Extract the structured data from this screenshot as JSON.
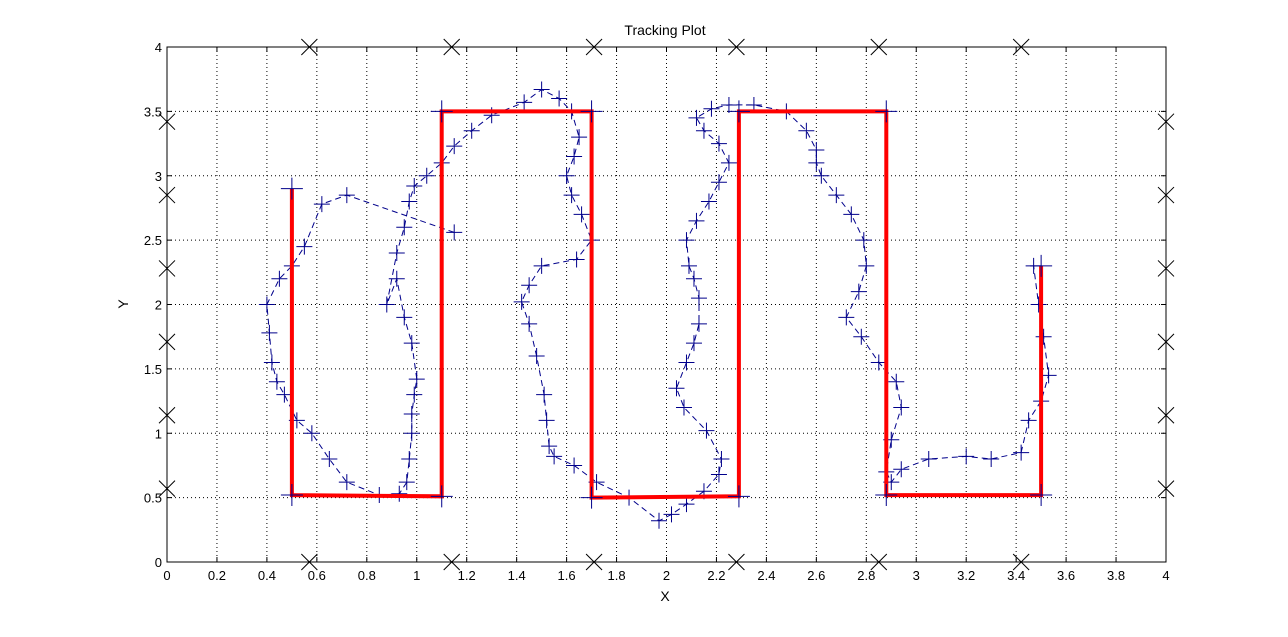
{
  "chart_data": {
    "type": "scatter",
    "title": "Tracking Plot",
    "xlabel": "X",
    "ylabel": "Y",
    "xlim": [
      0,
      4
    ],
    "ylim": [
      0,
      4
    ],
    "grid": true,
    "x_ticks": [
      0,
      0.2,
      0.4,
      0.6,
      0.8,
      1,
      1.2,
      1.4,
      1.6,
      1.8,
      2,
      2.2,
      2.4,
      2.6,
      2.8,
      3,
      3.2,
      3.4,
      3.6,
      3.8,
      4
    ],
    "x_tick_labels": [
      "0",
      "0.2",
      "0.4",
      "0.6",
      "0.8",
      "1",
      "1.2",
      "1.4",
      "1.6",
      "1.8",
      "2",
      "2.2",
      "2.4",
      "2.6",
      "2.8",
      "3",
      "3.2",
      "3.4",
      "3.6",
      "3.8",
      "4"
    ],
    "y_ticks": [
      0,
      0.5,
      1,
      1.5,
      2,
      2.5,
      3,
      3.5,
      4
    ],
    "y_tick_labels": [
      "0",
      "0.5",
      "1",
      "1.5",
      "2",
      "2.5",
      "3",
      "3.5",
      "4"
    ],
    "colors": {
      "reference": "#ff0000",
      "track": "#00008b",
      "anchors": "#000000",
      "grid": "#000000"
    },
    "series": [
      {
        "style": "solid-red-line-with-plus-markers",
        "x": [
          0.5,
          0.5,
          1.1,
          1.1,
          1.7,
          1.7,
          2.29,
          2.29,
          2.88,
          2.88,
          3.5,
          3.5
        ],
        "y": [
          2.9,
          0.52,
          0.51,
          3.5,
          3.5,
          0.5,
          0.51,
          3.5,
          3.5,
          0.52,
          0.52,
          2.3
        ]
      },
      {
        "style": "dashed-blue-line-with-plus-markers",
        "x": [
          1.15,
          0.72,
          0.62,
          0.55,
          0.5,
          0.45,
          0.4,
          0.41,
          0.42,
          0.44,
          0.47,
          0.52,
          0.58,
          0.65,
          0.72,
          0.85,
          0.93,
          0.96,
          0.97,
          0.98,
          0.98,
          0.99,
          1.0,
          0.98,
          0.95,
          0.92,
          0.88,
          0.92,
          0.95,
          0.97,
          0.99,
          1.04,
          1.1,
          1.15,
          1.22,
          1.3,
          1.43,
          1.5,
          1.57,
          1.62,
          1.65,
          1.63,
          1.6,
          1.62,
          1.66,
          1.7,
          1.64,
          1.5,
          1.45,
          1.42,
          1.45,
          1.48,
          1.51,
          1.52,
          1.53,
          1.55,
          1.63,
          1.72,
          1.85,
          1.97,
          2.02,
          2.08,
          2.15,
          2.21,
          2.22,
          2.16,
          2.07,
          2.04,
          2.08,
          2.11,
          2.13,
          2.13,
          2.11,
          2.09,
          2.08,
          2.12,
          2.17,
          2.21,
          2.25,
          2.21,
          2.15,
          2.12,
          2.18,
          2.25,
          2.35,
          2.48,
          2.56,
          2.6,
          2.6,
          2.62,
          2.68,
          2.74,
          2.79,
          2.8,
          2.77,
          2.72,
          2.78,
          2.85,
          2.92,
          2.94,
          2.9,
          2.88,
          2.9,
          2.94,
          3.05,
          3.2,
          3.3,
          3.42,
          3.45,
          3.5,
          3.53,
          3.51,
          3.49,
          3.47
        ],
        "y": [
          2.56,
          2.85,
          2.78,
          2.45,
          2.3,
          2.2,
          2.0,
          1.78,
          1.55,
          1.4,
          1.3,
          1.1,
          1.0,
          0.8,
          0.62,
          0.52,
          0.53,
          0.62,
          0.8,
          1.0,
          1.15,
          1.3,
          1.42,
          1.7,
          1.9,
          2.2,
          2.0,
          2.4,
          2.6,
          2.8,
          2.92,
          3.0,
          3.1,
          3.23,
          3.35,
          3.47,
          3.57,
          3.67,
          3.6,
          3.5,
          3.3,
          3.15,
          3.0,
          2.85,
          2.7,
          2.5,
          2.35,
          2.3,
          2.15,
          2.02,
          1.85,
          1.6,
          1.3,
          1.1,
          0.9,
          0.82,
          0.75,
          0.62,
          0.5,
          0.32,
          0.37,
          0.45,
          0.55,
          0.68,
          0.8,
          1.02,
          1.2,
          1.35,
          1.55,
          1.7,
          1.85,
          2.05,
          2.2,
          2.3,
          2.5,
          2.65,
          2.8,
          2.95,
          3.1,
          3.25,
          3.35,
          3.45,
          3.52,
          3.55,
          3.55,
          3.5,
          3.35,
          3.2,
          3.1,
          3.0,
          2.85,
          2.7,
          2.5,
          2.3,
          2.1,
          1.9,
          1.75,
          1.55,
          1.4,
          1.2,
          0.95,
          0.7,
          0.62,
          0.72,
          0.8,
          0.82,
          0.8,
          0.85,
          1.1,
          1.25,
          1.45,
          1.75,
          2.0,
          2.3
        ]
      },
      {
        "style": "black-x-markers",
        "x": [
          0.57,
          1.14,
          1.71,
          2.28,
          2.85,
          3.42,
          0.57,
          1.14,
          1.71,
          2.28,
          2.85,
          3.42,
          0,
          0,
          0,
          0,
          0,
          0,
          4,
          4,
          4,
          4,
          4,
          4
        ],
        "y": [
          4,
          4,
          4,
          4,
          4,
          4,
          0,
          0,
          0,
          0,
          0,
          0,
          0.57,
          1.14,
          1.71,
          2.28,
          2.85,
          3.42,
          0.57,
          1.14,
          1.71,
          2.28,
          2.85,
          3.42
        ]
      }
    ]
  }
}
